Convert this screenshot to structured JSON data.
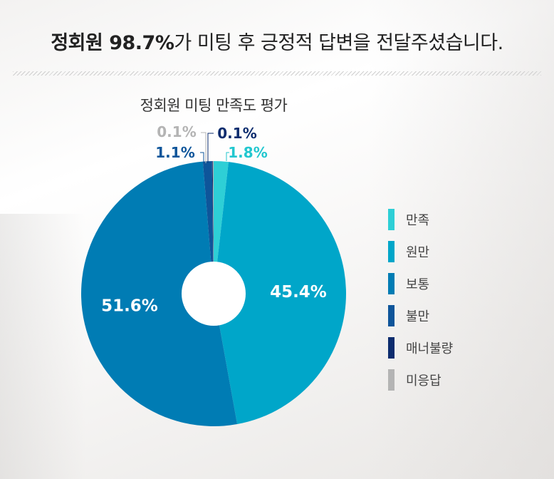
{
  "headline": {
    "strong": "정회원 98.7%",
    "rest": "가 미팅 후 긍정적 답변을 전달주셨습니다."
  },
  "chart_data": {
    "type": "pie",
    "title": "정회원 미팅 만족도 평가",
    "series": [
      {
        "name": "만족",
        "value": 1.8,
        "label": "1.8%",
        "color": "#2ecfd6",
        "label_color": "#22c7cf"
      },
      {
        "name": "원만",
        "value": 45.4,
        "label": "45.4%",
        "color": "#00a6c9",
        "label_color": "#ffffff"
      },
      {
        "name": "보통",
        "value": 51.6,
        "label": "51.6%",
        "color": "#007cb4",
        "label_color": "#ffffff"
      },
      {
        "name": "불만",
        "value": 1.1,
        "label": "1.1%",
        "color": "#0e559a",
        "label_color": "#0e559a"
      },
      {
        "name": "매너불량",
        "value": 0.1,
        "label": "0.1%",
        "color": "#0c2c6e",
        "label_color": "#0c2c6e"
      },
      {
        "name": "미응답",
        "value": 0.1,
        "label": "0.1%",
        "color": "#b4b4b4",
        "label_color": "#b4b4b4"
      }
    ],
    "legend_position": "right"
  }
}
